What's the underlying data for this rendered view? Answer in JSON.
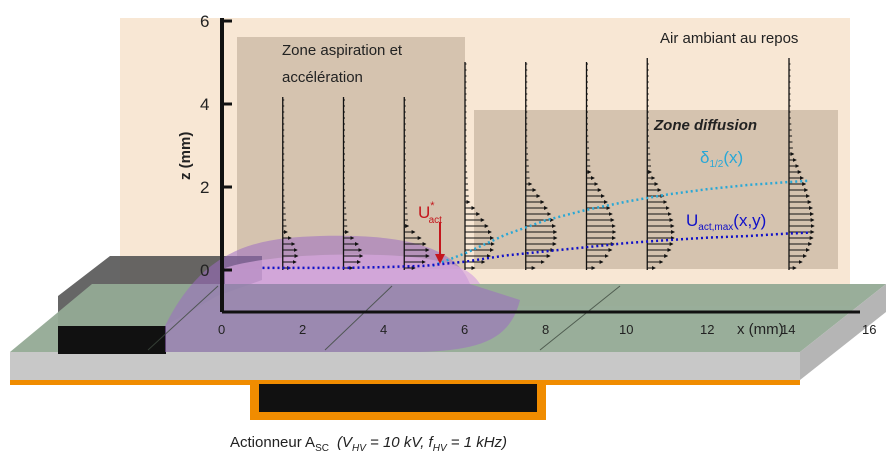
{
  "diagram": {
    "top_right_label": "Air ambiant au repos",
    "zone_aspiration_line1": "Zone aspiration et",
    "zone_aspiration_line2": "accélération",
    "zone_diffusion": "Zone diffusion",
    "delta_label_main": "δ",
    "delta_label_sub": "1/2",
    "delta_label_tail": "(x)",
    "umax_label_main": "U",
    "umax_label_sub": "act,max",
    "umax_label_tail": "(x,y)",
    "uact_main": "U",
    "uact_sup": "*",
    "uact_sub": "act",
    "caption_main": "Actionneur A",
    "caption_sub": "SC",
    "caption_params": "(V",
    "caption_vhv_sub": "HV",
    "caption_mid": " = 10 kV, f",
    "caption_fhv_sub": "HV",
    "caption_end": " = 1 kHz)",
    "colors": {
      "panel": "#f7e3cc",
      "zone": "#c9b7a3",
      "plate_top": "#93aa95",
      "plate_side": "#c5c5c5",
      "electrode": "#f08c00",
      "delta_curve": "#29a8d6",
      "umax_curve": "#1010c8",
      "uact_arrow": "#c4161c",
      "plasma": "#9c6cc2"
    }
  },
  "chart_data": {
    "type": "diagram",
    "xlabel": "x (mm)",
    "ylabel": "z (mm)",
    "xlim": [
      0,
      16
    ],
    "ylim": [
      0,
      6
    ],
    "x_ticks": [
      "0",
      "2",
      "4",
      "6",
      "8",
      "10",
      "12",
      "14",
      "16"
    ],
    "y_ticks": [
      "0",
      "2",
      "4",
      "6"
    ],
    "profile_stations_x": [
      1.5,
      3,
      4.5,
      6,
      7.5,
      9,
      10.5,
      14
    ],
    "series": [
      {
        "name": "δ1/2(x)",
        "x": [
          5.2,
          6,
          7,
          8,
          9,
          10,
          11,
          12,
          13,
          14,
          14.5
        ],
        "y": [
          0.1,
          0.4,
          0.85,
          1.2,
          1.45,
          1.65,
          1.82,
          1.95,
          2.05,
          2.12,
          2.15
        ]
      },
      {
        "name": "Uact,max(x,y)",
        "x": [
          1,
          2,
          3,
          4,
          5,
          6,
          7,
          8,
          9,
          10,
          11,
          12,
          13,
          14,
          14.5
        ],
        "y": [
          0.05,
          0.05,
          0.05,
          0.07,
          0.1,
          0.2,
          0.35,
          0.45,
          0.55,
          0.65,
          0.72,
          0.78,
          0.82,
          0.88,
          0.9
        ]
      }
    ]
  }
}
